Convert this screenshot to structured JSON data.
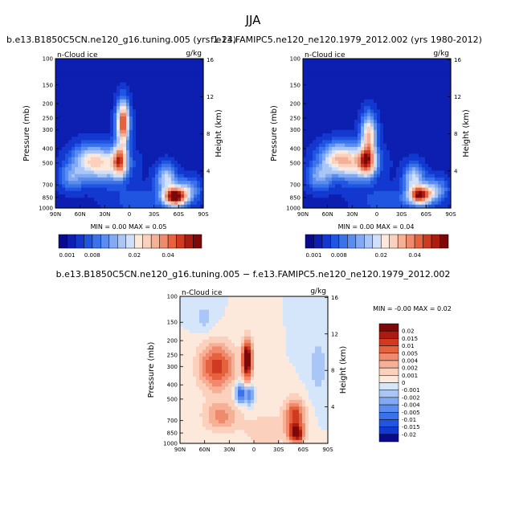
{
  "figure": {
    "title": "JJA",
    "top_left_subtitle": "b.e13.B1850C5CN.ne120_g16.tuning.005 (yrs 1-24)",
    "top_right_subtitle": "f.e13.FAMIPC5.ne120_ne120.1979_2012.002 (yrs 1980-2012)",
    "bottom_subtitle": "b.e13.B1850C5CN.ne120_g16.tuning.005 − f.e13.FAMIPC5.ne120_ne120.1979_2012.002"
  },
  "chart_data": [
    {
      "type": "contour",
      "name": "model-panel",
      "panel_label": "n-Cloud ice",
      "units": "g/kg",
      "xlabel": "",
      "ylabel": "Pressure (mb)",
      "y2label": "Height (km)",
      "x_ticks": [
        "90N",
        "60N",
        "30N",
        "0",
        "30S",
        "60S",
        "90S"
      ],
      "x_range": [
        90,
        -90
      ],
      "y_ticks": [
        "100",
        "150",
        "200",
        "250",
        "300",
        "400",
        "500",
        "700",
        "850",
        "1000"
      ],
      "y_range": [
        100,
        1000
      ],
      "y2_ticks": [
        "16",
        "12",
        "8",
        "4"
      ],
      "stats": {
        "min_label": "MIN =",
        "min": "0.00",
        "max_label": "MAX =",
        "max": "0.05"
      },
      "colorbar_labels": [
        "0.001",
        "0.008",
        "0.02",
        "0.04"
      ],
      "colors": [
        "#0a0a8c",
        "#0d1fb0",
        "#1238cf",
        "#1f55e0",
        "#3a72ea",
        "#5b8df0",
        "#82aaf4",
        "#a9c6f7",
        "#d0dffa",
        "#fde9dc",
        "#fbd0bc",
        "#f6b096",
        "#f08a6c",
        "#e5623f",
        "#cf3a20",
        "#ab1b10",
        "#7d0808"
      ],
      "features": [
        {
          "lat": 8,
          "p": 270,
          "sx": 5,
          "sy": 2.2,
          "a": 1.0
        },
        {
          "lat": 12,
          "p": 480,
          "sx": 6,
          "sy": 1.6,
          "a": 0.8
        },
        {
          "lat": 30,
          "p": 520,
          "sx": 18,
          "sy": 1.8,
          "a": 0.45
        },
        {
          "lat": 50,
          "p": 470,
          "sx": 14,
          "sy": 1.5,
          "a": 0.35
        },
        {
          "lat": 70,
          "p": 620,
          "sx": 10,
          "sy": 1.3,
          "a": 0.28
        },
        {
          "lat": -55,
          "p": 840,
          "sx": 9,
          "sy": 0.9,
          "a": 1.25
        },
        {
          "lat": -45,
          "p": 640,
          "sx": 8,
          "sy": 1.4,
          "a": 0.45
        },
        {
          "lat": -70,
          "p": 760,
          "sx": 10,
          "sy": 1.2,
          "a": 0.35
        },
        {
          "lat": -15,
          "p": 900,
          "sx": 25,
          "sy": 1.4,
          "a": 0.12
        }
      ]
    },
    {
      "type": "contour",
      "name": "obs-panel",
      "panel_label": "n-Cloud ice",
      "units": "g/kg",
      "xlabel": "",
      "ylabel": "Pressure (mb)",
      "y2label": "Height (km)",
      "x_ticks": [
        "90N",
        "60N",
        "30N",
        "0",
        "30S",
        "60S",
        "90S"
      ],
      "x_range": [
        90,
        -90
      ],
      "y_ticks": [
        "100",
        "150",
        "200",
        "250",
        "300",
        "400",
        "500",
        "700",
        "850",
        "1000"
      ],
      "y_range": [
        100,
        1000
      ],
      "y2_ticks": [
        "16",
        "12",
        "8",
        "4"
      ],
      "stats": {
        "min_label": "MIN =",
        "min": "0.00",
        "max_label": "MAX =",
        "max": "0.04"
      },
      "colorbar_labels": [
        "0.001",
        "0.008",
        "0.02",
        "0.04"
      ],
      "colors": [
        "#0a0a8c",
        "#0d1fb0",
        "#1238cf",
        "#1f55e0",
        "#3a72ea",
        "#5b8df0",
        "#82aaf4",
        "#a9c6f7",
        "#d0dffa",
        "#fde9dc",
        "#fbd0bc",
        "#f6b096",
        "#f08a6c",
        "#e5623f",
        "#cf3a20",
        "#ab1b10",
        "#7d0808"
      ],
      "features": [
        {
          "lat": 10,
          "p": 320,
          "sx": 6,
          "sy": 2.0,
          "a": 0.65
        },
        {
          "lat": 12,
          "p": 480,
          "sx": 7,
          "sy": 1.5,
          "a": 0.85
        },
        {
          "lat": 30,
          "p": 500,
          "sx": 18,
          "sy": 1.8,
          "a": 0.5
        },
        {
          "lat": 50,
          "p": 460,
          "sx": 14,
          "sy": 1.5,
          "a": 0.4
        },
        {
          "lat": 70,
          "p": 620,
          "sx": 10,
          "sy": 1.3,
          "a": 0.3
        },
        {
          "lat": -52,
          "p": 820,
          "sx": 9,
          "sy": 0.9,
          "a": 1.1
        },
        {
          "lat": -45,
          "p": 630,
          "sx": 8,
          "sy": 1.4,
          "a": 0.45
        },
        {
          "lat": -70,
          "p": 760,
          "sx": 10,
          "sy": 1.2,
          "a": 0.35
        },
        {
          "lat": -15,
          "p": 900,
          "sx": 25,
          "sy": 1.4,
          "a": 0.12
        }
      ]
    },
    {
      "type": "contour",
      "name": "diff-panel",
      "panel_label": "n-Cloud ice",
      "units": "g/kg",
      "xlabel": "",
      "ylabel": "Pressure (mb)",
      "y2label": "Height (km)",
      "x_ticks": [
        "90N",
        "60N",
        "30N",
        "0",
        "30S",
        "60S",
        "90S"
      ],
      "x_range": [
        90,
        -90
      ],
      "y_ticks": [
        "100",
        "150",
        "200",
        "250",
        "300",
        "400",
        "500",
        "700",
        "850",
        "1000"
      ],
      "y_range": [
        100,
        1000
      ],
      "y2_ticks": [
        "16",
        "12",
        "8",
        "4"
      ],
      "stats": {
        "min_label": "MIN =",
        "min": "-0.00",
        "max_label": "MAX =",
        "max": "0.02"
      },
      "colorbar_labels": [
        "0.02",
        "0.015",
        "0.01",
        "0.005",
        "0.004",
        "0.002",
        "0.001",
        "0",
        "-0.001",
        "-0.002",
        "-0.004",
        "-0.005",
        "-0.01",
        "-0.015",
        "-0.02"
      ],
      "colors": [
        "#7d0808",
        "#ab1b10",
        "#cf3a20",
        "#e5623f",
        "#f08a6c",
        "#f6b096",
        "#fbd0bc",
        "#fde9dc",
        "#d6e6fa",
        "#a9c6f7",
        "#82aaf4",
        "#5b8df0",
        "#3a72ea",
        "#1f55e0",
        "#1238cf",
        "#0a0a8c"
      ],
      "features": [
        {
          "lat": 8,
          "p": 270,
          "sx": 4,
          "sy": 2.0,
          "a": 1.0
        },
        {
          "lat": 45,
          "p": 300,
          "sx": 14,
          "sy": 2.4,
          "a": 0.55
        },
        {
          "lat": 40,
          "p": 650,
          "sx": 14,
          "sy": 1.6,
          "a": 0.3
        },
        {
          "lat": -50,
          "p": 650,
          "sx": 8,
          "sy": 1.7,
          "a": 0.55
        },
        {
          "lat": -52,
          "p": 860,
          "sx": 6,
          "sy": 0.9,
          "a": 0.8
        },
        {
          "lat": 16,
          "p": 460,
          "sx": 4,
          "sy": 1.0,
          "a": -0.5
        },
        {
          "lat": 5,
          "p": 470,
          "sx": 3,
          "sy": 1.0,
          "a": -0.35
        },
        {
          "lat": 60,
          "p": 140,
          "sx": 8,
          "sy": 1.4,
          "a": -0.1
        },
        {
          "lat": -78,
          "p": 300,
          "sx": 7,
          "sy": 3,
          "a": -0.12
        },
        {
          "lat": -15,
          "p": 820,
          "sx": 20,
          "sy": 2.0,
          "a": 0.12
        }
      ]
    }
  ]
}
